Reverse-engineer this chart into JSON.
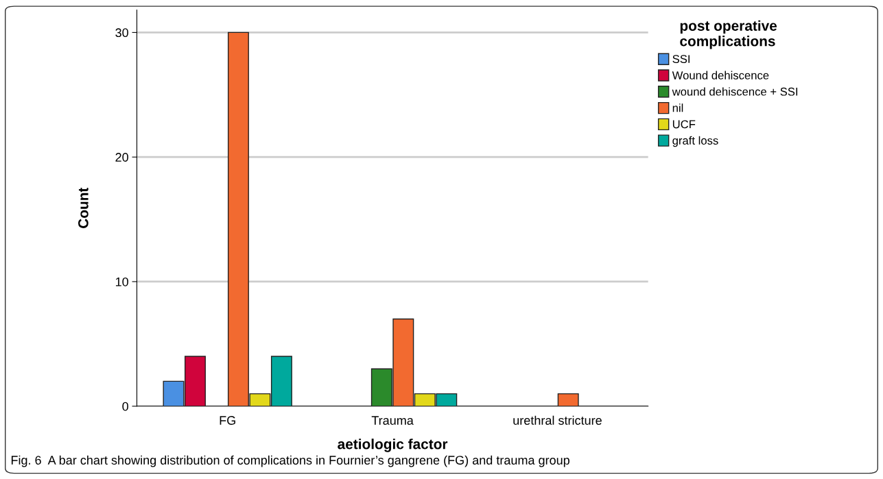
{
  "chart_data": {
    "type": "bar",
    "xlabel": "aetiologic factor",
    "ylabel": "Count",
    "legend_title": "post operative\ncomplications",
    "categories": [
      "FG",
      "Trauma",
      "urethral stricture"
    ],
    "series": [
      {
        "name": "SSI",
        "color": "#4a90e2",
        "values": [
          2,
          null,
          null
        ]
      },
      {
        "name": "Wound dehiscence",
        "color": "#d0043c",
        "values": [
          4,
          null,
          null
        ]
      },
      {
        "name": "wound dehiscence + SSI",
        "color": "#2b8a2b",
        "values": [
          null,
          3,
          null
        ]
      },
      {
        "name": "nil",
        "color": "#f26a30",
        "values": [
          30,
          7,
          1
        ]
      },
      {
        "name": "UCF",
        "color": "#e2d81a",
        "values": [
          1,
          1,
          null
        ]
      },
      {
        "name": "graft loss",
        "color": "#00a99d",
        "values": [
          4,
          1,
          null
        ]
      }
    ],
    "ylim": [
      0,
      31.8
    ],
    "yticks": [
      0,
      10,
      20,
      30
    ],
    "grid": "y",
    "legend": "top right",
    "annotations": [
      "Fig. 6  A bar chart showing distribution of complications in Fournier’s gangrene (FG) and trauma group"
    ]
  }
}
